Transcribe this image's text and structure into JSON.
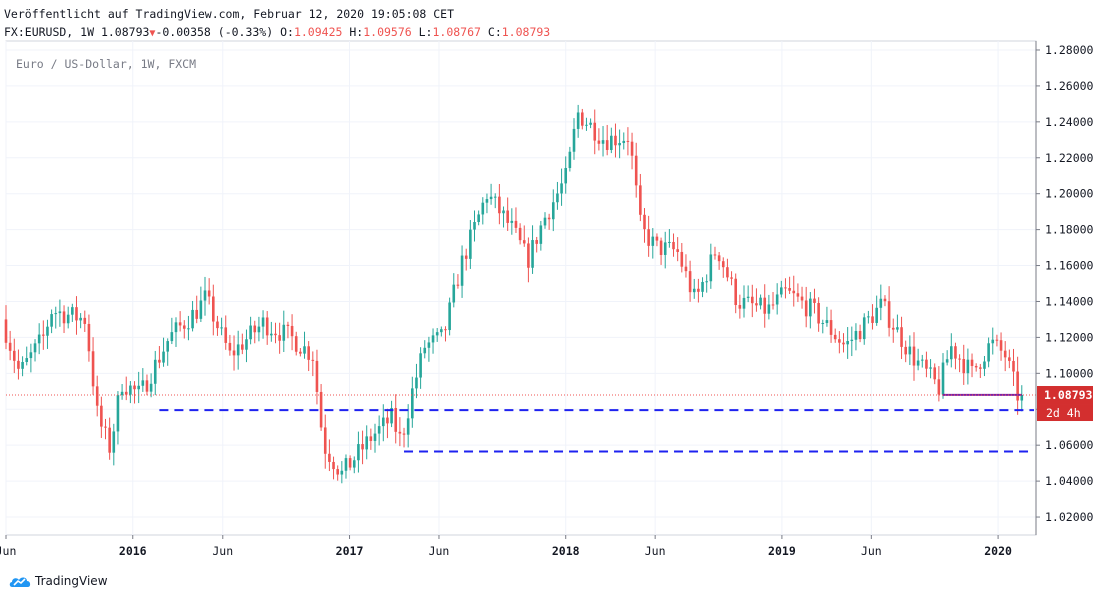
{
  "header": {
    "published": "Veröffentlicht auf TradingView.com, Februar 12, 2020 19:05:08 CET",
    "symbol": "FX:EURUSD, 1W",
    "last": "1.08793",
    "change": "-0.00358 (-0.33%)",
    "o_label": "O:",
    "o_value": "1.09425",
    "h_label": "H:",
    "h_value": "1.09576",
    "l_label": "L:",
    "l_value": "1.08767",
    "c_label": "C:",
    "c_value": "1.08793"
  },
  "legend": "Euro / US-Dollar, 1W, FXCM",
  "brand": "TradingView",
  "colors": {
    "up": "#26a69a",
    "down": "#ef5350",
    "dashed": "#1e22f0",
    "support": "#7b1fa2",
    "price_tag": "#d32f2f"
  },
  "chart_data": {
    "type": "candlestick",
    "ylim": [
      1.01,
      1.285
    ],
    "xlim": [
      "2015-06-01",
      "2020-03-05"
    ],
    "y_ticks": [
      "1.28000",
      "1.26000",
      "1.24000",
      "1.22000",
      "1.20000",
      "1.18000",
      "1.16000",
      "1.14000",
      "1.12000",
      "1.10000",
      "1.08000",
      "1.06000",
      "1.04000",
      "1.02000"
    ],
    "x_ticks": [
      {
        "label": "Jun",
        "date": "2015-06-01"
      },
      {
        "label": "2016",
        "date": "2016-01-01"
      },
      {
        "label": "Jun",
        "date": "2016-06-01"
      },
      {
        "label": "2017",
        "date": "2017-01-01"
      },
      {
        "label": "Jun",
        "date": "2017-06-01"
      },
      {
        "label": "2018",
        "date": "2018-01-01"
      },
      {
        "label": "Jun",
        "date": "2018-06-01"
      },
      {
        "label": "2019",
        "date": "2019-01-01"
      },
      {
        "label": "Jun",
        "date": "2019-06-01"
      },
      {
        "label": "2020",
        "date": "2020-01-01"
      }
    ],
    "current_price": {
      "value": 1.08793,
      "label": "1.08793",
      "countdown": "2d 4h"
    },
    "horizontal_lines": [
      {
        "value": 1.0795,
        "from": "2016-02-15",
        "to": "2020-03-05",
        "style": "dashed"
      },
      {
        "value": 1.0565,
        "from": "2017-04-03",
        "to": "2020-03-05",
        "style": "dashed"
      },
      {
        "value": 1.088,
        "from": "2019-09-30",
        "to": "2020-02-10",
        "style": "solid"
      }
    ],
    "price_path": [
      {
        "date": "2015-06-01",
        "price": 1.13
      },
      {
        "date": "2015-07-01",
        "price": 1.1
      },
      {
        "date": "2015-08-10",
        "price": 1.12
      },
      {
        "date": "2015-08-24",
        "price": 1.135
      },
      {
        "date": "2015-10-20",
        "price": 1.13
      },
      {
        "date": "2015-11-10",
        "price": 1.075
      },
      {
        "date": "2015-12-01",
        "price": 1.058
      },
      {
        "date": "2015-12-20",
        "price": 1.095
      },
      {
        "date": "2016-01-20",
        "price": 1.088
      },
      {
        "date": "2016-03-10",
        "price": 1.12
      },
      {
        "date": "2016-04-25",
        "price": 1.135
      },
      {
        "date": "2016-05-10",
        "price": 1.142
      },
      {
        "date": "2016-06-20",
        "price": 1.11
      },
      {
        "date": "2016-08-15",
        "price": 1.128
      },
      {
        "date": "2016-10-01",
        "price": 1.12
      },
      {
        "date": "2016-11-07",
        "price": 1.11
      },
      {
        "date": "2016-11-25",
        "price": 1.06
      },
      {
        "date": "2016-12-26",
        "price": 1.044
      },
      {
        "date": "2017-02-15",
        "price": 1.065
      },
      {
        "date": "2017-03-20",
        "price": 1.075
      },
      {
        "date": "2017-04-05",
        "price": 1.062
      },
      {
        "date": "2017-04-24",
        "price": 1.09
      },
      {
        "date": "2017-05-15",
        "price": 1.115
      },
      {
        "date": "2017-06-15",
        "price": 1.12
      },
      {
        "date": "2017-07-15",
        "price": 1.16
      },
      {
        "date": "2017-08-28",
        "price": 1.2
      },
      {
        "date": "2017-10-10",
        "price": 1.18
      },
      {
        "date": "2017-11-05",
        "price": 1.163
      },
      {
        "date": "2017-12-01",
        "price": 1.185
      },
      {
        "date": "2018-01-10",
        "price": 1.21
      },
      {
        "date": "2018-01-28",
        "price": 1.245
      },
      {
        "date": "2018-03-15",
        "price": 1.23
      },
      {
        "date": "2018-04-25",
        "price": 1.232
      },
      {
        "date": "2018-05-15",
        "price": 1.18
      },
      {
        "date": "2018-06-10",
        "price": 1.17
      },
      {
        "date": "2018-07-15",
        "price": 1.168
      },
      {
        "date": "2018-08-15",
        "price": 1.14
      },
      {
        "date": "2018-09-20",
        "price": 1.17
      },
      {
        "date": "2018-10-25",
        "price": 1.14
      },
      {
        "date": "2018-12-15",
        "price": 1.135
      },
      {
        "date": "2019-01-15",
        "price": 1.145
      },
      {
        "date": "2019-03-01",
        "price": 1.135
      },
      {
        "date": "2019-04-25",
        "price": 1.115
      },
      {
        "date": "2019-06-25",
        "price": 1.138
      },
      {
        "date": "2019-08-15",
        "price": 1.11
      },
      {
        "date": "2019-09-30",
        "price": 1.092
      },
      {
        "date": "2019-10-20",
        "price": 1.115
      },
      {
        "date": "2019-11-25",
        "price": 1.1
      },
      {
        "date": "2019-12-27",
        "price": 1.117
      },
      {
        "date": "2020-01-20",
        "price": 1.11
      },
      {
        "date": "2020-02-10",
        "price": 1.088
      }
    ]
  }
}
